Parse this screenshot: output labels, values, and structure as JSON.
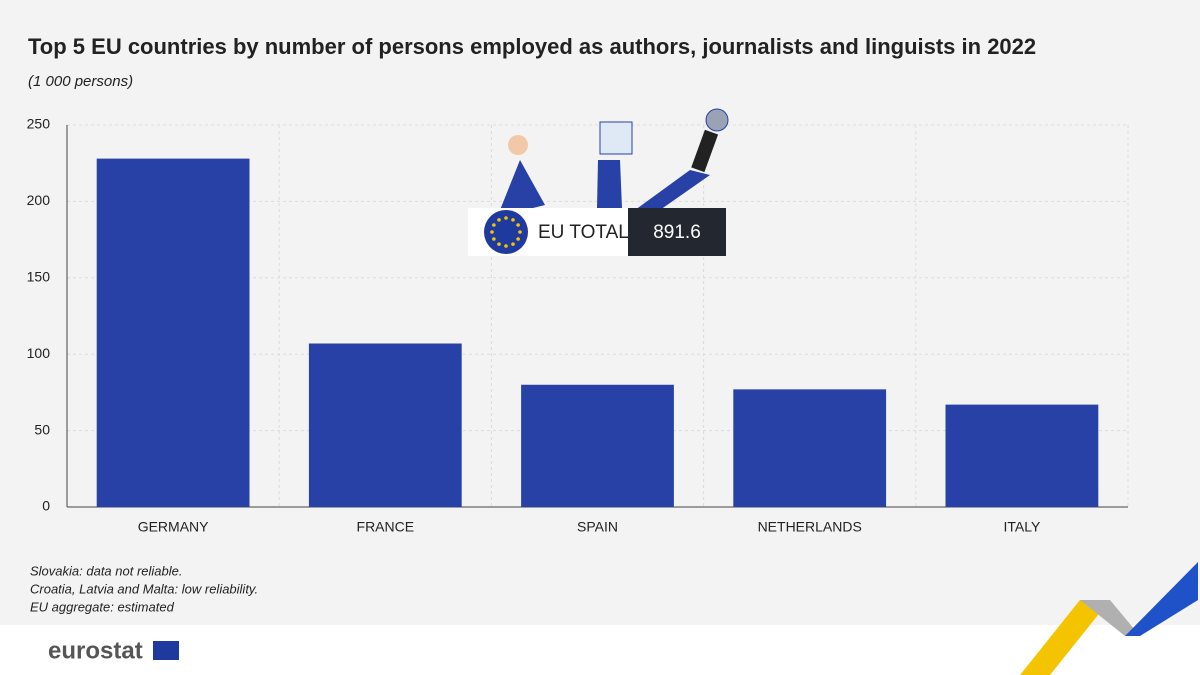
{
  "chart_data": {
    "type": "bar",
    "title": "Top 5 EU countries by number of persons employed as authors, journalists and linguists in 2022",
    "subtitle": "(1 000 persons)",
    "categories": [
      "GERMANY",
      "FRANCE",
      "SPAIN",
      "NETHERLANDS",
      "ITALY"
    ],
    "values": [
      228,
      107,
      80,
      77,
      67
    ],
    "color": "#2841a6",
    "ylim": [
      0,
      250
    ],
    "yticks": [
      0,
      50,
      100,
      150,
      200,
      250
    ],
    "grid": true,
    "annotation": {
      "label": "EU TOTAL",
      "value": 891.6
    },
    "notes": [
      "Slovakia: data not reliable.",
      "Croatia, Latvia and Malta: low reliability.",
      "EU aggregate: estimated"
    ]
  },
  "footer": {
    "logo": "eurostat"
  }
}
